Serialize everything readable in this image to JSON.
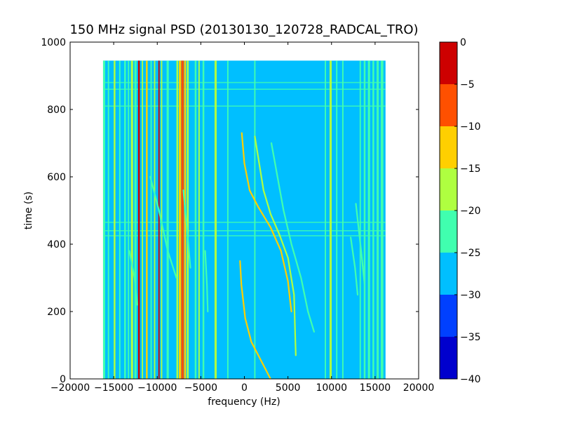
{
  "chart_data": {
    "type": "heatmap",
    "title": "150 MHz signal PSD (20130130_120728_RADCAL_TRO)",
    "xlabel": "frequency (Hz)",
    "ylabel": "time (s)",
    "xlim": [
      -20000,
      20000
    ],
    "ylim": [
      0,
      1000
    ],
    "x_ticks": [
      -20000,
      -15000,
      -10000,
      -5000,
      0,
      5000,
      10000,
      15000,
      20000
    ],
    "x_tick_labels": [
      "−20000",
      "−15000",
      "−10000",
      "−5000",
      "0",
      "5000",
      "10000",
      "15000",
      "20000"
    ],
    "y_ticks": [
      0,
      200,
      400,
      600,
      800,
      1000
    ],
    "y_tick_labels": [
      "0",
      "200",
      "400",
      "600",
      "800",
      "1000"
    ],
    "data_extent": {
      "freq": [
        -16200,
        16200
      ],
      "time": [
        0,
        945
      ]
    },
    "background_level": -27.5,
    "colorbar": {
      "levels": [
        -40,
        -35,
        -30,
        -25,
        -20,
        -15,
        -10,
        -5,
        0
      ],
      "tick_labels": [
        "−40",
        "−35",
        "−30",
        "−25",
        "−20",
        "−15",
        "−10",
        "−5",
        "0"
      ],
      "colors": [
        "#0000cd",
        "#0040ff",
        "#00bfff",
        "#40ffaf",
        "#afff40",
        "#ffcf00",
        "#ff5000",
        "#cd0000"
      ]
    },
    "steady_carriers": [
      {
        "freq": -16100,
        "width": 250,
        "level": -22
      },
      {
        "freq": -15600,
        "width": 150,
        "level": -22
      },
      {
        "freq": -14900,
        "width": 200,
        "level": -17
      },
      {
        "freq": -14300,
        "width": 150,
        "level": -22
      },
      {
        "freq": -13700,
        "width": 200,
        "level": -22
      },
      {
        "freq": -13300,
        "width": 150,
        "level": -22
      },
      {
        "freq": -12900,
        "width": 250,
        "level": -17
      },
      {
        "freq": -12500,
        "width": 250,
        "level": -22
      },
      {
        "freq": -12100,
        "width": 200,
        "level": -2
      },
      {
        "freq": -11700,
        "width": 150,
        "level": -17
      },
      {
        "freq": -11200,
        "width": 200,
        "level": -12
      },
      {
        "freq": -10700,
        "width": 150,
        "level": -22
      },
      {
        "freq": -10300,
        "width": 150,
        "level": -17
      },
      {
        "freq": -9800,
        "width": 150,
        "level": -2
      },
      {
        "freq": -9500,
        "width": 150,
        "level": -17
      },
      {
        "freq": -8800,
        "width": 250,
        "level": -22
      },
      {
        "freq": -7700,
        "width": 200,
        "level": -17
      },
      {
        "freq": -7400,
        "width": 250,
        "level": -12
      },
      {
        "freq": -7100,
        "width": 300,
        "level": -7
      },
      {
        "freq": -6800,
        "width": 200,
        "level": -12
      },
      {
        "freq": -6500,
        "width": 200,
        "level": -17
      },
      {
        "freq": -5600,
        "width": 200,
        "level": -22
      },
      {
        "freq": -5200,
        "width": 150,
        "level": -17
      },
      {
        "freq": -4700,
        "width": 200,
        "level": -22
      },
      {
        "freq": -3300,
        "width": 250,
        "level": -17
      },
      {
        "freq": -1900,
        "width": 150,
        "level": -22
      },
      {
        "freq": 1200,
        "width": 150,
        "level": -22
      },
      {
        "freq": 9300,
        "width": 150,
        "level": -22
      },
      {
        "freq": 9900,
        "width": 250,
        "level": -17
      },
      {
        "freq": 10600,
        "width": 150,
        "level": -22
      },
      {
        "freq": 11300,
        "width": 150,
        "level": -22
      },
      {
        "freq": 13300,
        "width": 150,
        "level": -22
      },
      {
        "freq": 13800,
        "width": 200,
        "level": -22
      },
      {
        "freq": 14300,
        "width": 250,
        "level": -22
      },
      {
        "freq": 14800,
        "width": 200,
        "level": -22
      },
      {
        "freq": 15300,
        "width": 250,
        "level": -22
      },
      {
        "freq": 15800,
        "width": 300,
        "level": -22
      }
    ],
    "horizontal_bands": [
      {
        "time": 880,
        "level": -22
      },
      {
        "time": 860,
        "level": -22
      },
      {
        "time": 810,
        "level": -22
      },
      {
        "time": 465,
        "level": -22
      },
      {
        "time": 440,
        "level": -22
      },
      {
        "time": 425,
        "level": -22
      }
    ],
    "drift_traces": [
      {
        "level": -12,
        "points": [
          [
            -500,
            350
          ],
          [
            -350,
            280
          ],
          [
            100,
            180
          ],
          [
            800,
            110
          ],
          [
            1800,
            60
          ],
          [
            3000,
            0
          ]
        ]
      },
      {
        "level": -12,
        "points": [
          [
            -300,
            730
          ],
          [
            0,
            640
          ],
          [
            600,
            560
          ],
          [
            1600,
            510
          ],
          [
            3000,
            450
          ],
          [
            4200,
            380
          ],
          [
            5000,
            290
          ],
          [
            5300,
            220
          ],
          [
            5400,
            200
          ]
        ]
      },
      {
        "level": -17,
        "points": [
          [
            1200,
            720
          ],
          [
            2200,
            560
          ],
          [
            3000,
            490
          ],
          [
            4000,
            430
          ],
          [
            5000,
            360
          ],
          [
            5700,
            250
          ],
          [
            5900,
            70
          ]
        ]
      },
      {
        "level": -22,
        "points": [
          [
            3100,
            700
          ],
          [
            3800,
            600
          ],
          [
            4500,
            500
          ],
          [
            5400,
            400
          ],
          [
            6500,
            300
          ],
          [
            7300,
            200
          ],
          [
            8000,
            140
          ]
        ]
      },
      {
        "level": -22,
        "points": [
          [
            -10800,
            600
          ],
          [
            -9800,
            500
          ],
          [
            -8800,
            380
          ],
          [
            -7800,
            300
          ]
        ]
      },
      {
        "level": -22,
        "points": [
          [
            -13200,
            380
          ],
          [
            -12600,
            300
          ],
          [
            -12300,
            220
          ]
        ]
      },
      {
        "level": -22,
        "points": [
          [
            -4500,
            380
          ],
          [
            -4300,
            280
          ],
          [
            -4200,
            200
          ]
        ]
      },
      {
        "level": -22,
        "points": [
          [
            -7000,
            560
          ],
          [
            -6500,
            420
          ],
          [
            -6200,
            330
          ]
        ]
      },
      {
        "level": -22,
        "points": [
          [
            12800,
            520
          ],
          [
            13400,
            380
          ],
          [
            13800,
            280
          ]
        ]
      },
      {
        "level": -22,
        "points": [
          [
            12200,
            420
          ],
          [
            12700,
            330
          ],
          [
            13000,
            250
          ]
        ]
      }
    ]
  }
}
